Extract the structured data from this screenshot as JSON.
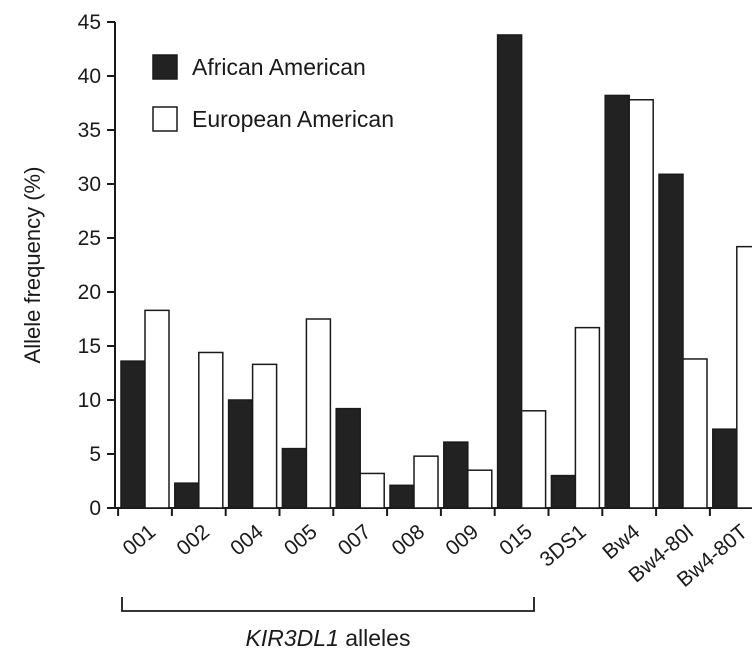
{
  "chart_data": {
    "type": "bar",
    "ylabel": "Allele frequency (%)",
    "ylim": [
      0,
      45
    ],
    "yticks": [
      "0",
      "5",
      "10",
      "15",
      "20",
      "25",
      "30",
      "35",
      "40",
      "45"
    ],
    "categories": [
      "001",
      "002",
      "004",
      "005",
      "007",
      "008",
      "009",
      "015",
      "3DS1",
      "Bw4",
      "Bw4-80I",
      "Bw4-80T"
    ],
    "series": [
      {
        "name": "African American",
        "color": "#222222",
        "values": [
          13.6,
          2.3,
          10.0,
          5.5,
          9.2,
          2.1,
          6.1,
          43.8,
          3.0,
          38.2,
          30.9,
          7.3
        ]
      },
      {
        "name": "European American",
        "color": "#ffffff",
        "values": [
          18.3,
          14.4,
          13.3,
          17.5,
          3.2,
          4.8,
          3.5,
          9.0,
          16.7,
          37.8,
          13.8,
          24.2
        ]
      }
    ],
    "group_bracket": {
      "italic_part": "KIR3DL1",
      "rest": " alleles"
    },
    "legend_position": "top-left",
    "grid": false
  }
}
